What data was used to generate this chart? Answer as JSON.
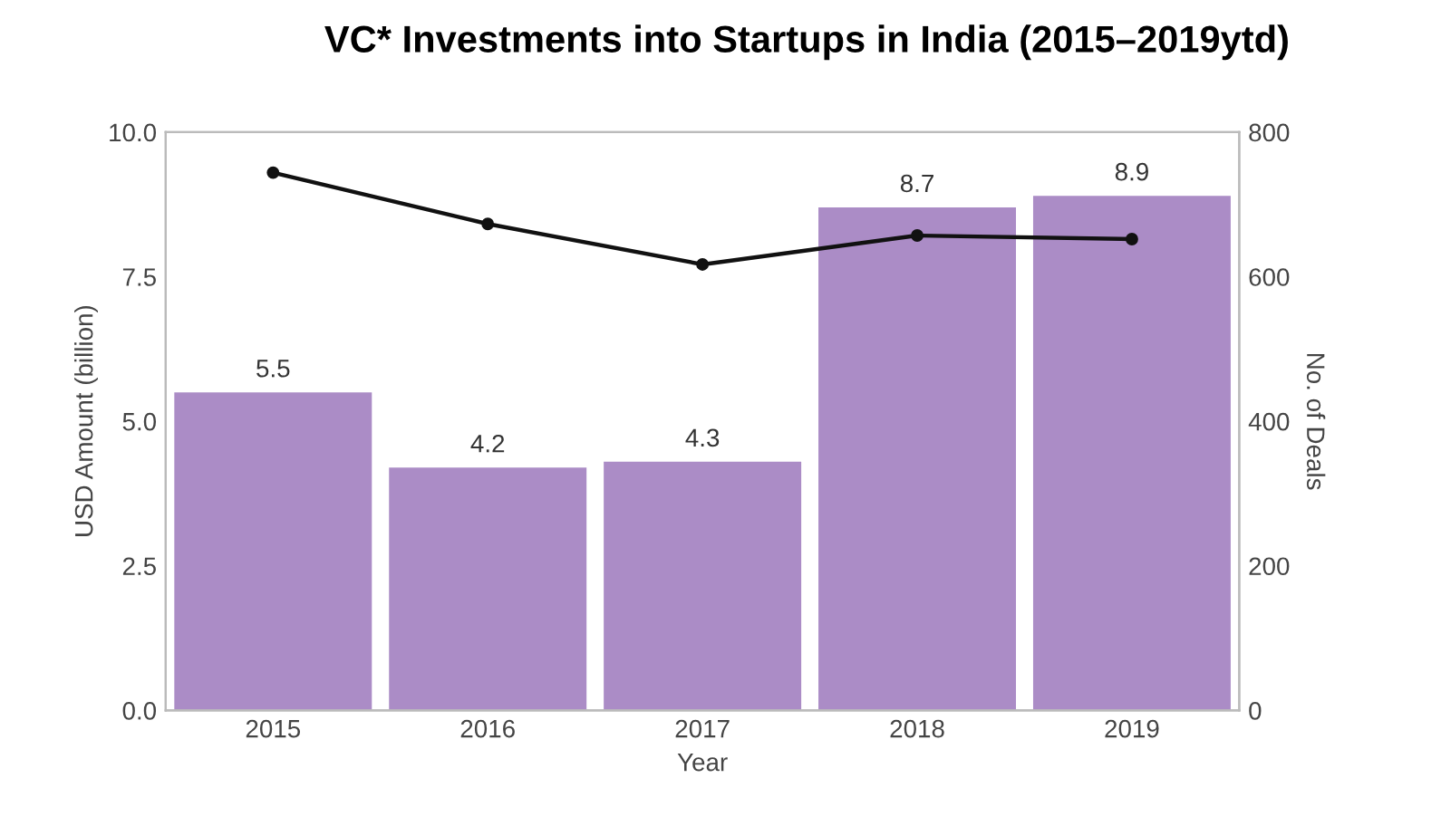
{
  "chart_data": {
    "type": "bar",
    "title": "VC* Investments into Startups in India (2015–2019ytd)",
    "xlabel": "Year",
    "ylabel": "USD Amount (billion)",
    "y2label": "No. of Deals",
    "categories": [
      "2015",
      "2016",
      "2017",
      "2018",
      "2019"
    ],
    "series": [
      {
        "color": "#ab8cc6",
        "values": [
          5.5,
          4.2,
          4.3,
          8.7,
          8.9
        ],
        "value_labels": [
          "5.5",
          "4.2",
          "4.3",
          "8.7",
          "8.9"
        ]
      },
      {
        "type": "line",
        "axis": "y2",
        "color": "#111111",
        "values": [
          744,
          673,
          617,
          657,
          652
        ]
      }
    ],
    "marker": "circle",
    "ylim": [
      0,
      10
    ],
    "yticks": [
      {
        "value": 0,
        "label": "0.0"
      },
      {
        "value": 2.5,
        "label": "2.5"
      },
      {
        "value": 5,
        "label": "5.0"
      },
      {
        "value": 7.5,
        "label": "7.5"
      },
      {
        "value": 10,
        "label": "10.0"
      }
    ],
    "y2lim": [
      0,
      800
    ],
    "y2ticks": [
      0,
      200,
      400,
      600,
      800
    ],
    "grid": false,
    "legend": false
  }
}
